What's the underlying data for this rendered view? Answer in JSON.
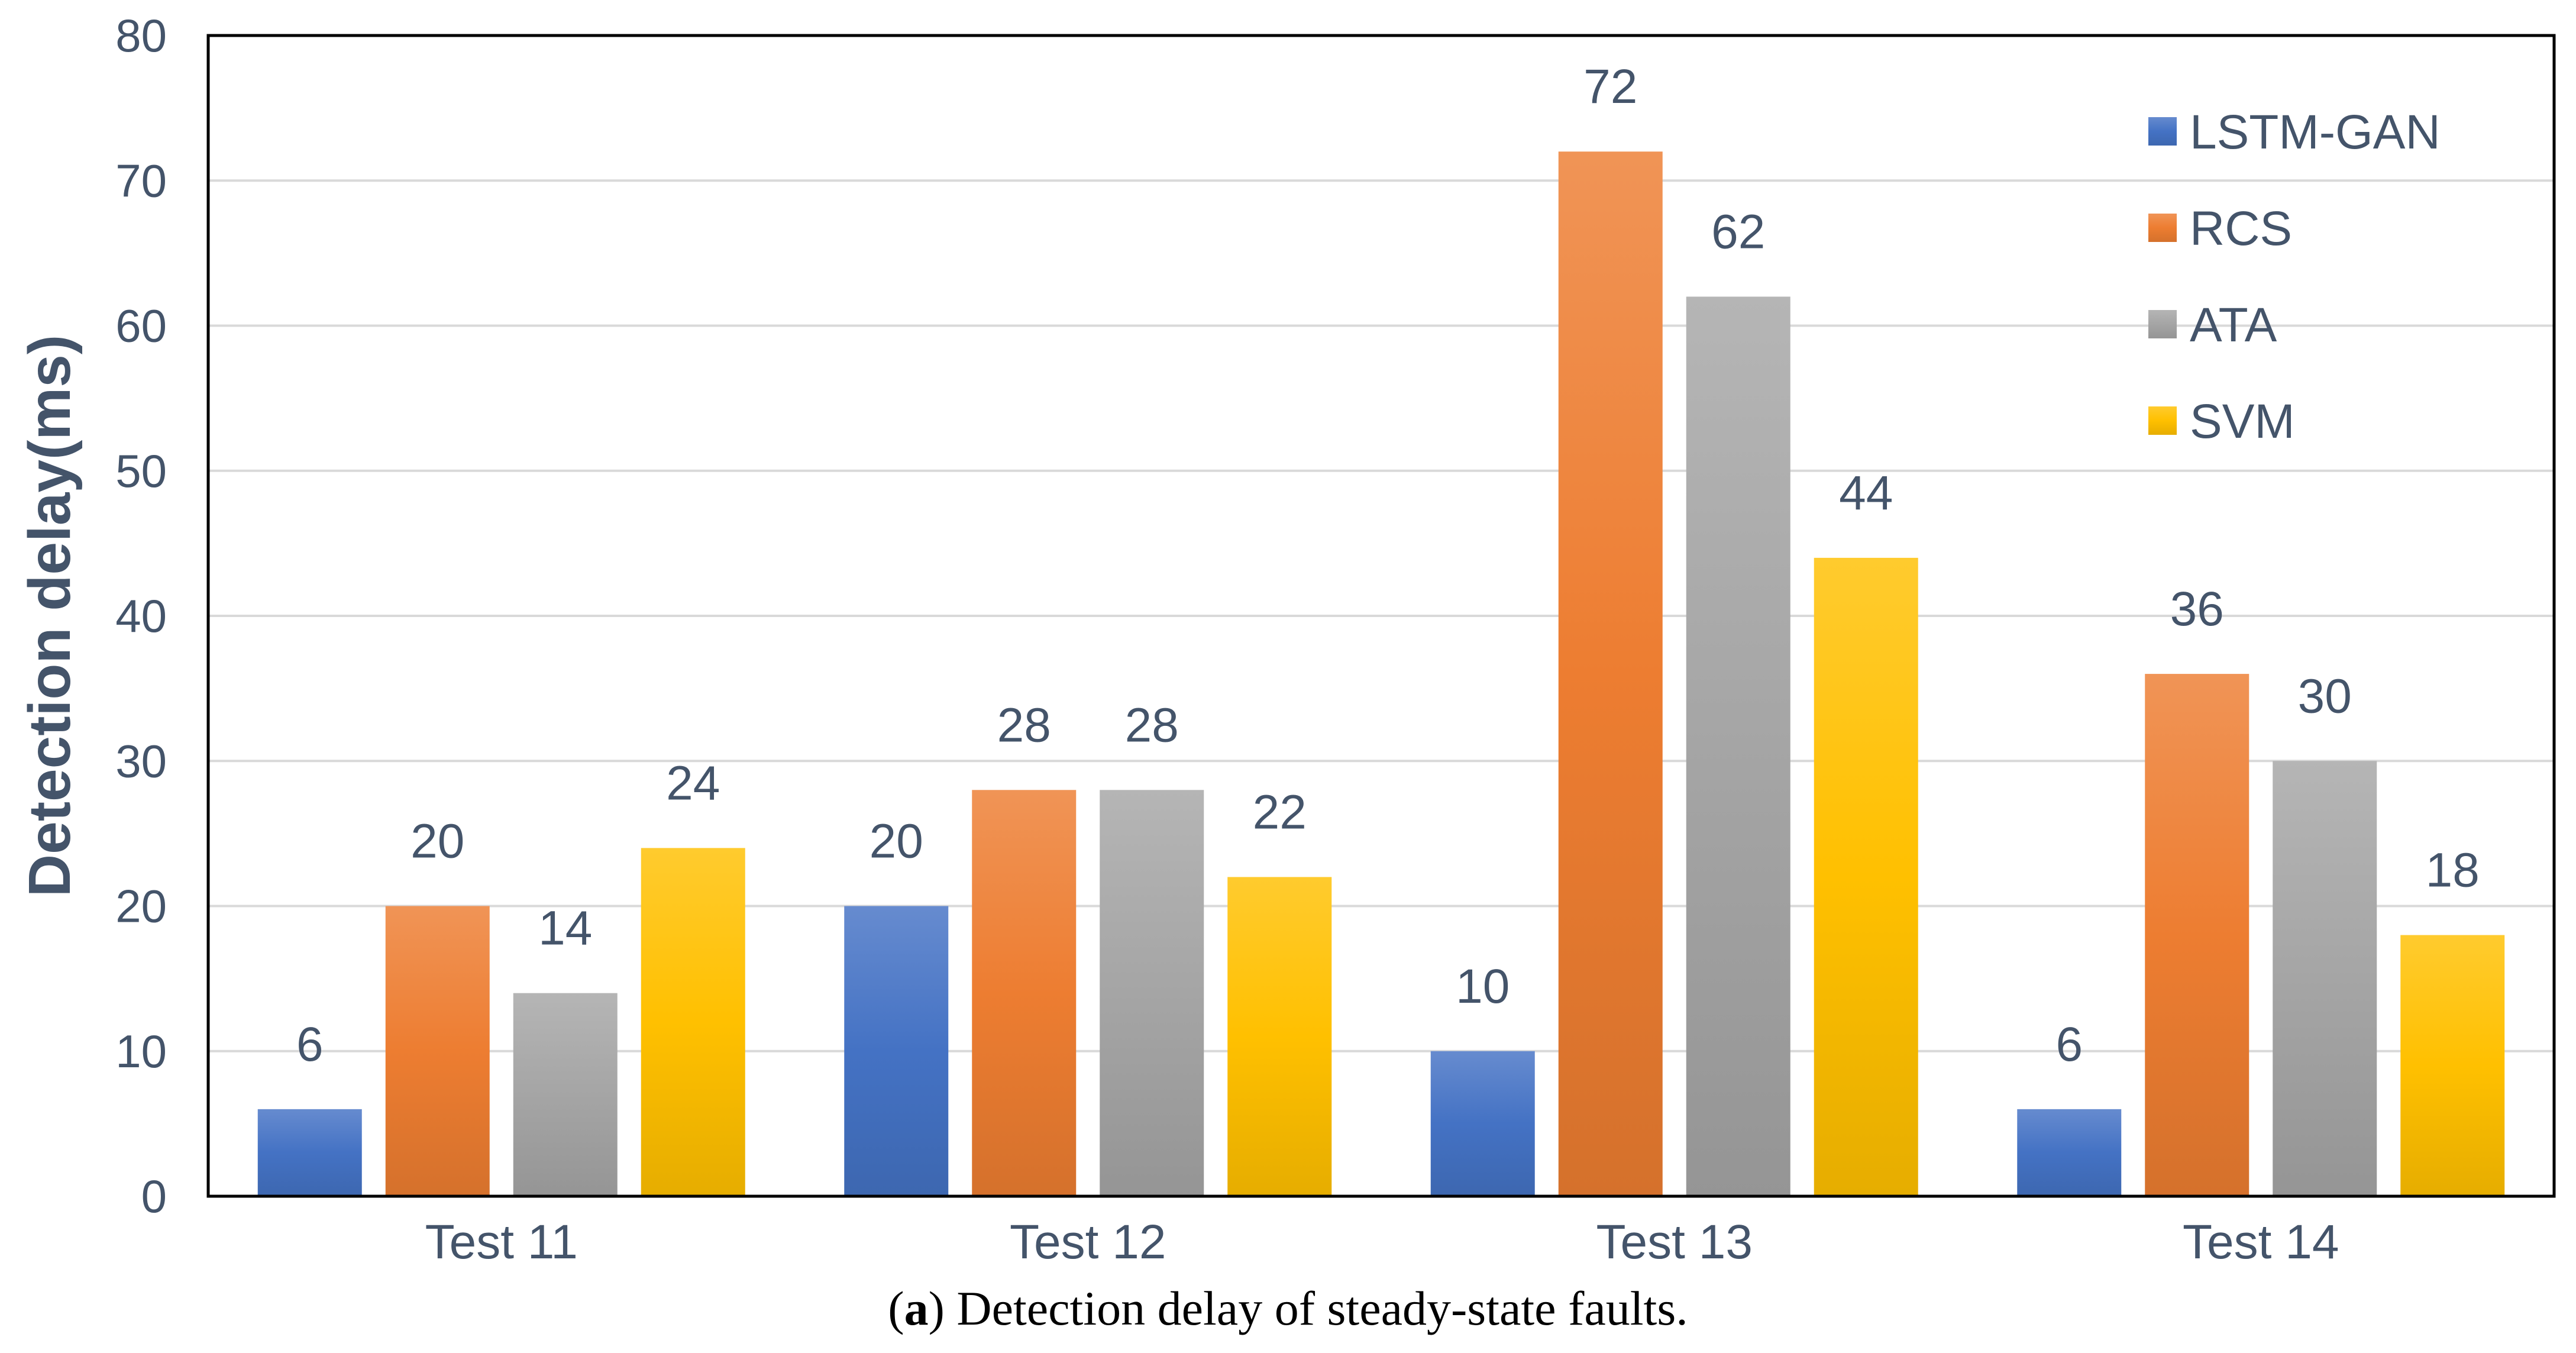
{
  "chart_data": {
    "type": "bar",
    "title": "",
    "xlabel": "",
    "ylabel": "Detection delay(ms)",
    "ylim": [
      0,
      80
    ],
    "yticks": [
      0,
      10,
      20,
      30,
      40,
      50,
      60,
      70,
      80
    ],
    "grid": true,
    "legend_position": "top-right",
    "categories": [
      "Test 11",
      "Test 12",
      "Test 13",
      "Test 14"
    ],
    "series": [
      {
        "name": "LSTM-GAN",
        "color": "#4472c4",
        "values": [
          6,
          20,
          10,
          6
        ]
      },
      {
        "name": "RCS",
        "color": "#ed7d31",
        "values": [
          20,
          28,
          72,
          36
        ]
      },
      {
        "name": "ATA",
        "color": "#a5a5a5",
        "values": [
          14,
          28,
          62,
          30
        ]
      },
      {
        "name": "SVM",
        "color": "#ffc000",
        "values": [
          24,
          22,
          44,
          18
        ]
      }
    ]
  },
  "caption": {
    "letter": "a",
    "text": " Detection delay of steady-state faults."
  }
}
